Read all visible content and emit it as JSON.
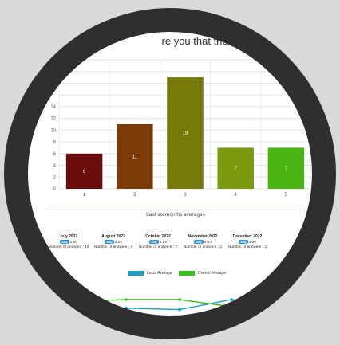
{
  "title": "re you that the police wo",
  "chart_data": [
    {
      "type": "bar",
      "categories": [
        "1",
        "2",
        "3",
        "4",
        "5"
      ],
      "values": [
        6,
        11,
        19,
        7,
        7
      ],
      "colors": [
        "#6b0d0d",
        "#7a3b08",
        "#757a08",
        "#7a9a10",
        "#4ab512"
      ],
      "ytick_labels": [
        "0",
        "2",
        "4",
        "6",
        "8",
        "10",
        "12",
        "14"
      ],
      "ylim": [
        0,
        22
      ],
      "grid": true
    },
    {
      "type": "line",
      "series": [
        {
          "name": "Local Average",
          "color": "#1aa0c0",
          "values": [
            2.8,
            2.6,
            2.5,
            3.2,
            2.9
          ]
        },
        {
          "name": "Overall Average",
          "color": "#3ac020",
          "values": [
            3.1,
            3.2,
            3.2,
            2.7,
            3.0
          ]
        }
      ],
      "legend_position": "top"
    }
  ],
  "averages_heading": "Last six months averages",
  "months": [
    {
      "month": "July 2022",
      "badge": "Avg",
      "avg": "2.60",
      "count_label": "Number of answers : 10"
    },
    {
      "month": "August 2022",
      "badge": "Avg",
      "avg": "3.25",
      "count_label": "Number of answers : 4"
    },
    {
      "month": "October 2022",
      "badge": "Avg",
      "avg": "3.29",
      "count_label": "Number of answers : 7"
    },
    {
      "month": "November 2022",
      "badge": "Avg",
      "avg": "4.00",
      "count_label": "Number of answers : 1"
    },
    {
      "month": "December 2022",
      "badge": "Avg",
      "avg": "3.00",
      "count_label": "Number of answers : 1"
    }
  ],
  "ring_color": "#2f2f2f"
}
